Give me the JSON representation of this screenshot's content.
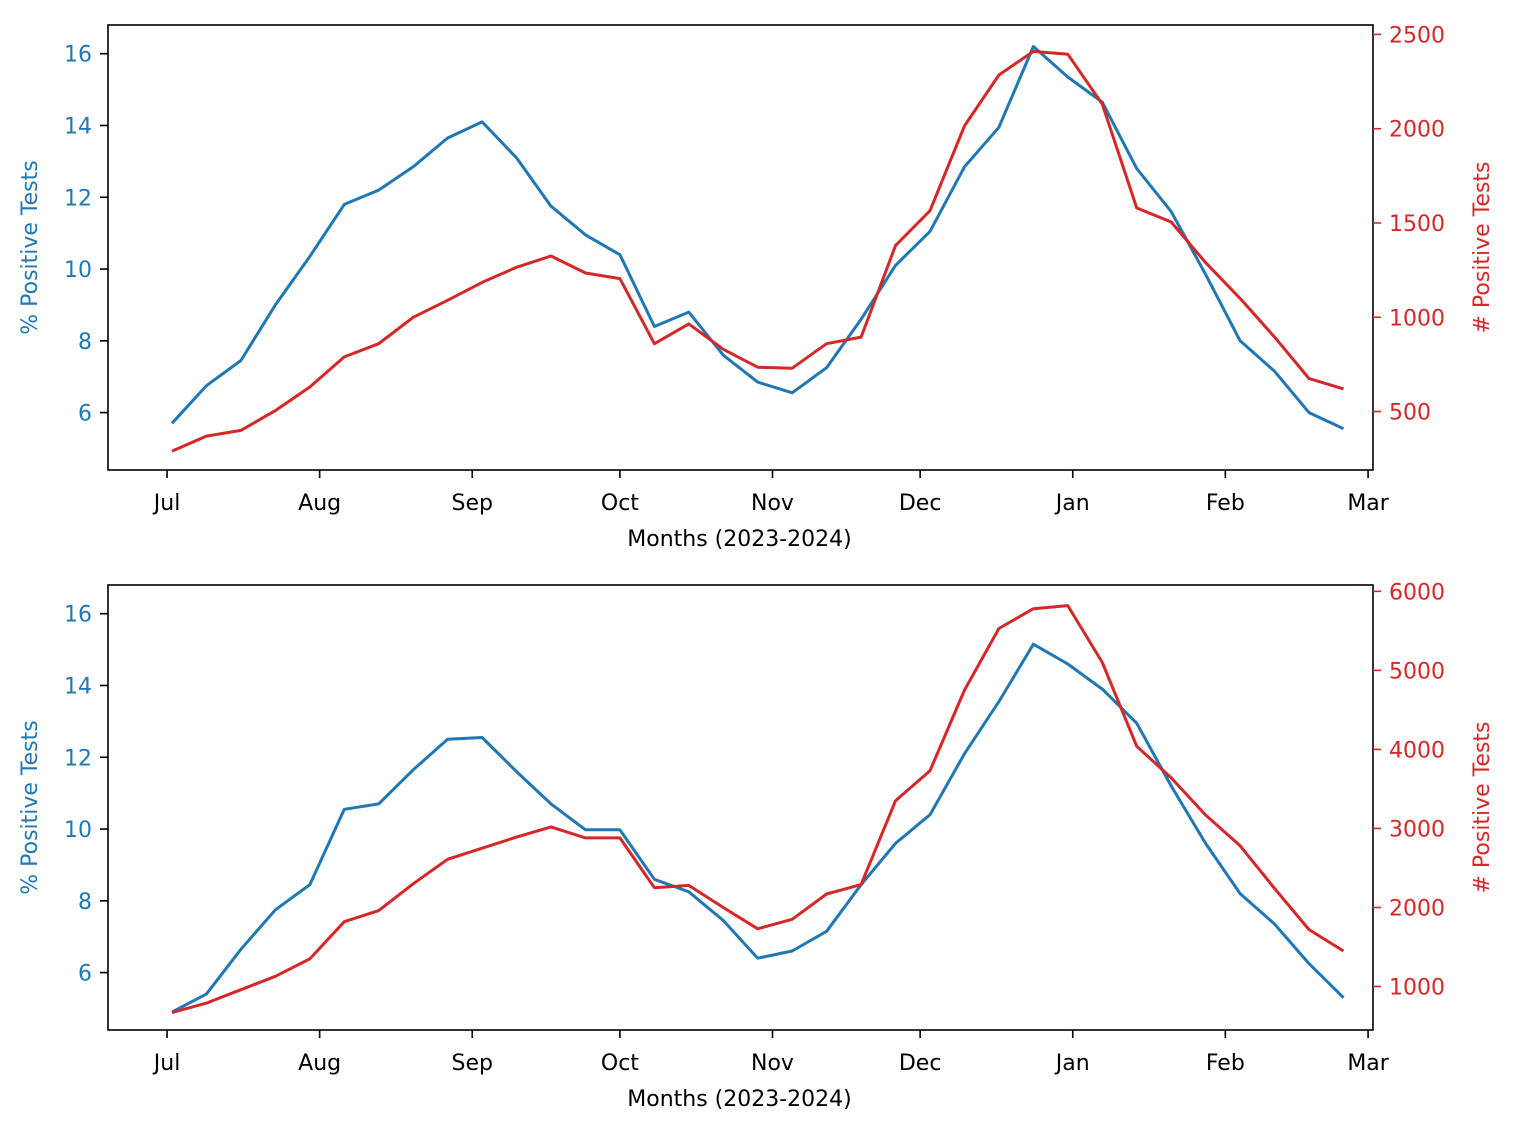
{
  "colors": {
    "pct_series": "#1f77b4",
    "count_series": "#d62728",
    "axis": "#000000"
  },
  "chart_data": [
    {
      "type": "line",
      "xlabel": "Months (2023-2024)",
      "ylabel_left": "% Positive Tests",
      "ylabel_right": "# Positive Tests",
      "grid": false,
      "x_ticks": [
        {
          "label": "Jul",
          "date": "2023-07-01"
        },
        {
          "label": "Aug",
          "date": "2023-08-01"
        },
        {
          "label": "Sep",
          "date": "2023-09-01"
        },
        {
          "label": "Oct",
          "date": "2023-10-01"
        },
        {
          "label": "Nov",
          "date": "2023-11-01"
        },
        {
          "label": "Dec",
          "date": "2023-12-01"
        },
        {
          "label": "Jan",
          "date": "2024-01-01"
        },
        {
          "label": "Feb",
          "date": "2024-02-01"
        },
        {
          "label": "Mar",
          "date": "2024-03-01"
        }
      ],
      "xlim": [
        "2023-06-19",
        "2024-03-02"
      ],
      "left_axis": {
        "ylim": [
          4.4,
          16.8
        ],
        "ticks": [
          6,
          8,
          10,
          12,
          14,
          16
        ]
      },
      "right_axis": {
        "ylim": [
          190,
          2550
        ],
        "ticks": [
          500,
          1000,
          1500,
          2000,
          2500
        ]
      },
      "x": [
        "2023-07-02",
        "2023-07-09",
        "2023-07-16",
        "2023-07-23",
        "2023-07-30",
        "2023-08-06",
        "2023-08-13",
        "2023-08-20",
        "2023-08-27",
        "2023-09-03",
        "2023-09-10",
        "2023-09-17",
        "2023-09-24",
        "2023-10-01",
        "2023-10-08",
        "2023-10-15",
        "2023-10-22",
        "2023-10-29",
        "2023-11-05",
        "2023-11-12",
        "2023-11-19",
        "2023-11-26",
        "2023-12-03",
        "2023-12-10",
        "2023-12-17",
        "2023-12-24",
        "2023-12-31",
        "2024-01-07",
        "2024-01-14",
        "2024-01-21",
        "2024-01-28",
        "2024-02-04",
        "2024-02-11",
        "2024-02-18",
        "2024-02-25"
      ],
      "series": [
        {
          "axis": "left",
          "values": [
            5.7,
            6.75,
            7.45,
            9.0,
            10.35,
            11.8,
            12.2,
            12.85,
            13.65,
            14.1,
            13.1,
            11.75,
            10.95,
            10.4,
            8.4,
            8.8,
            7.6,
            6.85,
            6.55,
            7.25,
            8.6,
            10.1,
            11.05,
            12.85,
            13.95,
            16.2,
            15.35,
            14.65,
            12.8,
            11.6,
            9.85,
            8.0,
            7.15,
            6.0,
            5.55
          ]
        },
        {
          "axis": "right",
          "values": [
            290,
            370,
            400,
            505,
            630,
            790,
            860,
            1000,
            1090,
            1185,
            1265,
            1325,
            1235,
            1205,
            860,
            965,
            830,
            735,
            730,
            860,
            895,
            1380,
            1565,
            2015,
            2285,
            2410,
            2395,
            2130,
            1580,
            1505,
            1290,
            1100,
            895,
            675,
            620
          ]
        }
      ]
    },
    {
      "type": "line",
      "xlabel": "Months (2023-2024)",
      "ylabel_left": "% Positive Tests",
      "ylabel_right": "# Positive Tests",
      "grid": false,
      "x_ticks": [
        {
          "label": "Jul",
          "date": "2023-07-01"
        },
        {
          "label": "Aug",
          "date": "2023-08-01"
        },
        {
          "label": "Sep",
          "date": "2023-09-01"
        },
        {
          "label": "Oct",
          "date": "2023-10-01"
        },
        {
          "label": "Nov",
          "date": "2023-11-01"
        },
        {
          "label": "Dec",
          "date": "2023-12-01"
        },
        {
          "label": "Jan",
          "date": "2024-01-01"
        },
        {
          "label": "Feb",
          "date": "2024-02-01"
        },
        {
          "label": "Mar",
          "date": "2024-03-01"
        }
      ],
      "xlim": [
        "2023-06-19",
        "2024-03-02"
      ],
      "left_axis": {
        "ylim": [
          4.4,
          16.8
        ],
        "ticks": [
          6,
          8,
          10,
          12,
          14,
          16
        ]
      },
      "right_axis": {
        "ylim": [
          450,
          6080
        ],
        "ticks": [
          1000,
          2000,
          3000,
          4000,
          5000,
          6000
        ]
      },
      "x": [
        "2023-07-02",
        "2023-07-09",
        "2023-07-16",
        "2023-07-23",
        "2023-07-30",
        "2023-08-06",
        "2023-08-13",
        "2023-08-20",
        "2023-08-27",
        "2023-09-03",
        "2023-09-10",
        "2023-09-17",
        "2023-09-24",
        "2023-10-01",
        "2023-10-08",
        "2023-10-15",
        "2023-10-22",
        "2023-10-29",
        "2023-11-05",
        "2023-11-12",
        "2023-11-19",
        "2023-11-26",
        "2023-12-03",
        "2023-12-10",
        "2023-12-17",
        "2023-12-24",
        "2023-12-31",
        "2024-01-07",
        "2024-01-14",
        "2024-01-21",
        "2024-01-28",
        "2024-02-04",
        "2024-02-11",
        "2024-02-18",
        "2024-02-25"
      ],
      "series": [
        {
          "axis": "left",
          "values": [
            4.9,
            5.4,
            6.65,
            7.75,
            8.45,
            10.55,
            10.7,
            11.65,
            12.5,
            12.55,
            11.6,
            10.7,
            9.98,
            9.98,
            8.6,
            8.25,
            7.45,
            6.4,
            6.6,
            7.15,
            8.45,
            9.6,
            10.4,
            12.1,
            13.55,
            15.15,
            14.6,
            13.9,
            12.95,
            11.2,
            9.6,
            8.2,
            7.35,
            6.25,
            5.3
          ]
        },
        {
          "axis": "right",
          "values": [
            670,
            790,
            960,
            1130,
            1350,
            1820,
            1960,
            2300,
            2610,
            2750,
            2890,
            3020,
            2880,
            2880,
            2250,
            2280,
            2000,
            1730,
            1850,
            2170,
            2290,
            3350,
            3730,
            4750,
            5530,
            5780,
            5820,
            5100,
            4040,
            3640,
            3170,
            2780,
            2240,
            1720,
            1450
          ]
        }
      ]
    }
  ]
}
